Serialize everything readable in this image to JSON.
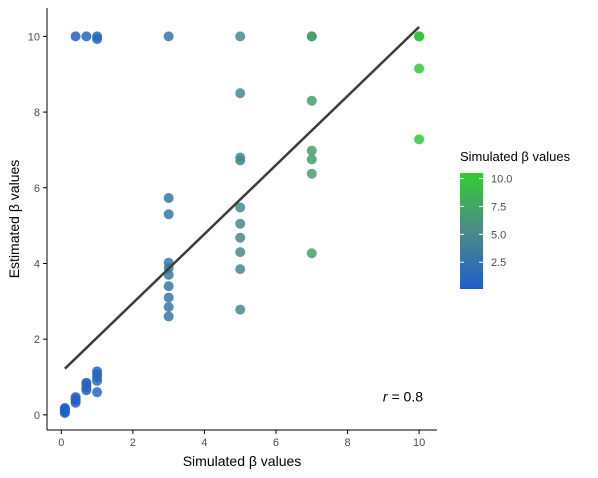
{
  "chart_data": {
    "type": "scatter",
    "title": "",
    "xlabel": "Simulated β values",
    "ylabel": "Estimated β values",
    "xlim": [
      -0.4,
      10.5
    ],
    "ylim": [
      -0.4,
      10.75
    ],
    "x_ticks": [
      0,
      2,
      4,
      6,
      8,
      10
    ],
    "y_ticks": [
      0,
      2,
      4,
      6,
      8,
      10
    ],
    "grid": false,
    "legend": {
      "title": "Simulated β values",
      "position": "right",
      "type": "colorbar",
      "range": [
        0.1,
        10.5
      ],
      "ticks": [
        2.5,
        5.0,
        7.5,
        10.0
      ],
      "tick_labels": [
        "2.5",
        "5.0",
        "7.5",
        "10.0"
      ],
      "color_low": "#1f5fc9",
      "color_mid": "#4c8b87",
      "color_high": "#33cc33"
    },
    "point_opacity": 0.85,
    "trend_line": {
      "x": [
        0.1,
        10
      ],
      "y": [
        1.22,
        10.25
      ],
      "color": "#3d3d3d"
    },
    "annotation": {
      "label": "r",
      "text": " = 0.8"
    },
    "points": [
      {
        "x": 0.1,
        "y": 0.05
      },
      {
        "x": 0.1,
        "y": 0.08
      },
      {
        "x": 0.1,
        "y": 0.12
      },
      {
        "x": 0.1,
        "y": 0.15
      },
      {
        "x": 0.1,
        "y": 0.18
      },
      {
        "x": 0.4,
        "y": 0.32
      },
      {
        "x": 0.4,
        "y": 0.38
      },
      {
        "x": 0.4,
        "y": 0.42
      },
      {
        "x": 0.4,
        "y": 0.47
      },
      {
        "x": 0.7,
        "y": 0.65
      },
      {
        "x": 0.7,
        "y": 0.72
      },
      {
        "x": 0.7,
        "y": 0.8
      },
      {
        "x": 0.7,
        "y": 0.85
      },
      {
        "x": 1,
        "y": 0.6
      },
      {
        "x": 1,
        "y": 0.9
      },
      {
        "x": 1,
        "y": 1.0
      },
      {
        "x": 1,
        "y": 1.08
      },
      {
        "x": 1,
        "y": 1.15
      },
      {
        "x": 0.4,
        "y": 10.0
      },
      {
        "x": 0.7,
        "y": 10.0
      },
      {
        "x": 1,
        "y": 10.0
      },
      {
        "x": 1,
        "y": 9.93
      },
      {
        "x": 3,
        "y": 10.0
      },
      {
        "x": 3,
        "y": 5.73
      },
      {
        "x": 3,
        "y": 5.3
      },
      {
        "x": 3,
        "y": 4.02
      },
      {
        "x": 3,
        "y": 3.88
      },
      {
        "x": 3,
        "y": 3.7
      },
      {
        "x": 3,
        "y": 3.4
      },
      {
        "x": 3,
        "y": 3.1
      },
      {
        "x": 3,
        "y": 2.85
      },
      {
        "x": 3,
        "y": 2.6
      },
      {
        "x": 5,
        "y": 10.0
      },
      {
        "x": 5,
        "y": 8.5
      },
      {
        "x": 5,
        "y": 6.8
      },
      {
        "x": 5,
        "y": 6.72
      },
      {
        "x": 5,
        "y": 5.48
      },
      {
        "x": 5,
        "y": 5.05
      },
      {
        "x": 5,
        "y": 4.68
      },
      {
        "x": 5,
        "y": 4.3
      },
      {
        "x": 5,
        "y": 3.85
      },
      {
        "x": 5,
        "y": 2.78
      },
      {
        "x": 7,
        "y": 10.0
      },
      {
        "x": 7,
        "y": 10.0
      },
      {
        "x": 7,
        "y": 8.3
      },
      {
        "x": 7,
        "y": 6.98
      },
      {
        "x": 7,
        "y": 6.75
      },
      {
        "x": 7,
        "y": 6.37
      },
      {
        "x": 7,
        "y": 4.27
      },
      {
        "x": 10,
        "y": 10.0
      },
      {
        "x": 10,
        "y": 10.0
      },
      {
        "x": 10,
        "y": 10.0
      },
      {
        "x": 10,
        "y": 9.15
      },
      {
        "x": 10,
        "y": 7.28
      }
    ]
  }
}
